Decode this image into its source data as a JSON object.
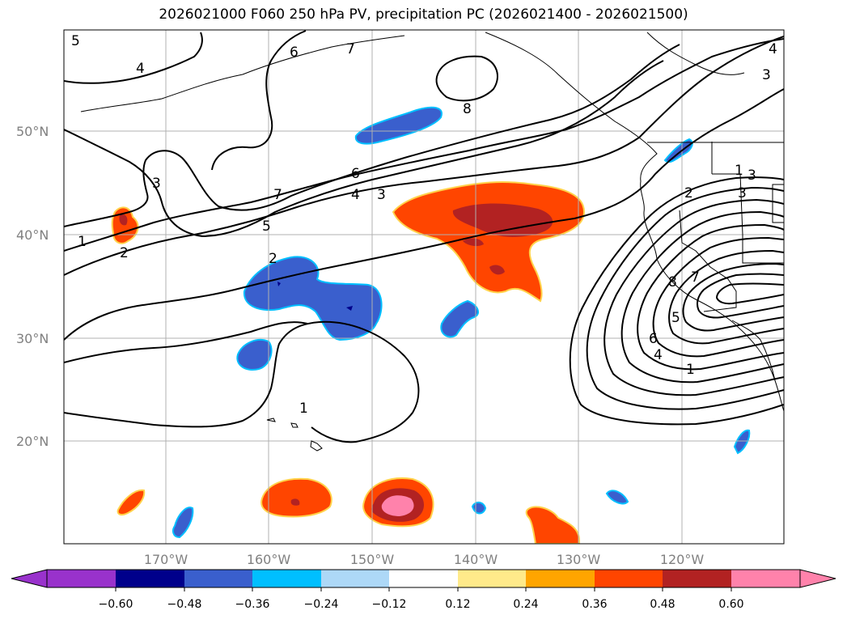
{
  "title": "2026021000 F060 250 hPa PV, precipitation PC (2026021400 - 2026021500)",
  "map": {
    "lat_labels": [
      "50°N",
      "40°N",
      "30°N",
      "20°N"
    ],
    "lon_labels": [
      "170°W",
      "160°W",
      "150°W",
      "140°W",
      "130°W",
      "120°W"
    ],
    "gridlines": true,
    "contour_variable": "250 hPa PV",
    "contour_labels": [
      "5",
      "4",
      "6",
      "7",
      "4",
      "3",
      "8",
      "3",
      "3",
      "6",
      "4",
      "3",
      "1",
      "2",
      "7",
      "5",
      "2",
      "3",
      "2",
      "1",
      "7",
      "8",
      "5",
      "6",
      "4",
      "1",
      "1"
    ]
  },
  "colorbar": {
    "ticks": [
      "−0.60",
      "−0.48",
      "−0.36",
      "−0.24",
      "−0.12",
      "0.12",
      "0.24",
      "0.36",
      "0.48",
      "0.60"
    ],
    "colors": [
      "#9932CC",
      "#00008B",
      "#3A5FCD",
      "#00BFFF",
      "#ADD8F7",
      "#FFFFFF",
      "#FFEA8A",
      "#FFA500",
      "#FF4500",
      "#B22222",
      "#FF82AB"
    ]
  }
}
